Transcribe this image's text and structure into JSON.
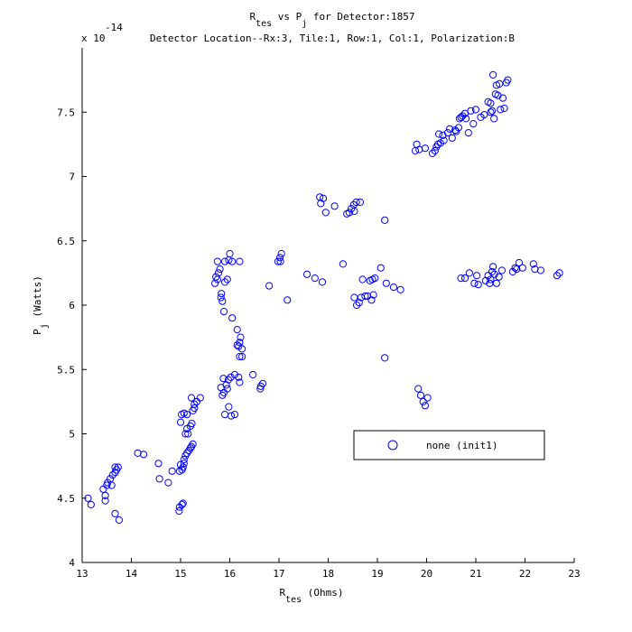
{
  "chart_data": {
    "type": "scatter",
    "title": {
      "line1": {
        "a": "R",
        "a_sub": "tes",
        "b": " vs P",
        "b_sub": "j",
        "c": " for Detector:1857"
      },
      "line2": "Detector Location--Rx:3, Tile:1, Row:1, Col:1, Polarization:B"
    },
    "xlabel": {
      "main": "R",
      "sub": "tes",
      "rest": " (Ohms)"
    },
    "ylabel": {
      "main": "P",
      "sub": "j",
      "rest": " (Watts)"
    },
    "y_exponent": {
      "base": "x 10",
      "exp": "-14"
    },
    "xlim": [
      13,
      23
    ],
    "ylim": [
      4,
      8
    ],
    "xticks": [
      "13",
      "14",
      "15",
      "16",
      "17",
      "18",
      "19",
      "20",
      "21",
      "22",
      "23"
    ],
    "yticks": [
      "4",
      "4.5",
      "5",
      "5.5",
      "6",
      "6.5",
      "7",
      "7.5"
    ],
    "legend": {
      "label": "none (init1)",
      "position": "inside-right"
    },
    "marker_color": "#0000ff",
    "series": [
      {
        "name": "none (init1)",
        "points": [
          [
            13.12,
            4.5
          ],
          [
            13.18,
            4.45
          ],
          [
            13.43,
            4.57
          ],
          [
            13.47,
            4.52
          ],
          [
            13.47,
            4.48
          ],
          [
            13.5,
            4.6
          ],
          [
            13.52,
            4.62
          ],
          [
            13.57,
            4.65
          ],
          [
            13.6,
            4.6
          ],
          [
            13.62,
            4.68
          ],
          [
            13.67,
            4.74
          ],
          [
            13.67,
            4.7
          ],
          [
            13.7,
            4.72
          ],
          [
            13.73,
            4.74
          ],
          [
            13.67,
            4.38
          ],
          [
            13.75,
            4.33
          ],
          [
            14.13,
            4.85
          ],
          [
            14.25,
            4.84
          ],
          [
            14.55,
            4.77
          ],
          [
            14.57,
            4.65
          ],
          [
            14.75,
            4.62
          ],
          [
            14.83,
            4.71
          ],
          [
            14.97,
            4.4
          ],
          [
            14.98,
            4.43
          ],
          [
            15.03,
            4.45
          ],
          [
            15.05,
            4.46
          ],
          [
            14.98,
            4.71
          ],
          [
            15.0,
            4.76
          ],
          [
            15.03,
            4.72
          ],
          [
            15.05,
            4.74
          ],
          [
            15.07,
            4.8
          ],
          [
            15.1,
            4.83
          ],
          [
            15.13,
            4.85
          ],
          [
            15.17,
            4.87
          ],
          [
            15.2,
            4.89
          ],
          [
            15.22,
            4.9
          ],
          [
            15.25,
            4.92
          ],
          [
            15.07,
            4.77
          ],
          [
            15.1,
            5.0
          ],
          [
            15.13,
            5.04
          ],
          [
            15.15,
            5.0
          ],
          [
            15.2,
            5.06
          ],
          [
            15.23,
            5.08
          ],
          [
            15.0,
            5.09
          ],
          [
            15.02,
            5.15
          ],
          [
            15.07,
            5.16
          ],
          [
            15.13,
            5.15
          ],
          [
            15.25,
            5.18
          ],
          [
            15.28,
            5.23
          ],
          [
            15.22,
            5.28
          ],
          [
            15.33,
            5.25
          ],
          [
            15.4,
            5.28
          ],
          [
            15.28,
            5.2
          ],
          [
            15.7,
            6.17
          ],
          [
            15.72,
            6.22
          ],
          [
            15.75,
            6.2
          ],
          [
            15.77,
            6.25
          ],
          [
            15.8,
            6.28
          ],
          [
            15.82,
            6.06
          ],
          [
            15.85,
            6.03
          ],
          [
            15.88,
            5.95
          ],
          [
            15.9,
            6.18
          ],
          [
            15.95,
            6.2
          ],
          [
            15.9,
            6.34
          ],
          [
            15.75,
            6.34
          ],
          [
            15.98,
            6.35
          ],
          [
            16.05,
            6.34
          ],
          [
            16.0,
            6.4
          ],
          [
            16.2,
            6.34
          ],
          [
            15.83,
            6.09
          ],
          [
            16.05,
            5.9
          ],
          [
            16.15,
            5.81
          ],
          [
            16.15,
            5.69
          ],
          [
            16.18,
            5.68
          ],
          [
            16.2,
            5.71
          ],
          [
            16.22,
            5.75
          ],
          [
            16.25,
            5.66
          ],
          [
            16.25,
            5.6
          ],
          [
            16.2,
            5.6
          ],
          [
            15.82,
            5.36
          ],
          [
            15.85,
            5.3
          ],
          [
            15.88,
            5.32
          ],
          [
            15.93,
            5.38
          ],
          [
            15.95,
            5.35
          ],
          [
            15.87,
            5.43
          ],
          [
            15.97,
            5.42
          ],
          [
            16.02,
            5.44
          ],
          [
            16.1,
            5.46
          ],
          [
            16.18,
            5.44
          ],
          [
            16.2,
            5.4
          ],
          [
            15.9,
            5.15
          ],
          [
            15.98,
            5.21
          ],
          [
            16.03,
            5.14
          ],
          [
            16.1,
            5.15
          ],
          [
            16.47,
            5.46
          ],
          [
            16.62,
            5.35
          ],
          [
            16.63,
            5.37
          ],
          [
            16.67,
            5.39
          ],
          [
            16.8,
            6.15
          ],
          [
            16.98,
            6.34
          ],
          [
            17.02,
            6.37
          ],
          [
            17.05,
            6.4
          ],
          [
            17.03,
            6.34
          ],
          [
            17.17,
            6.04
          ],
          [
            17.57,
            6.24
          ],
          [
            17.73,
            6.21
          ],
          [
            17.83,
            6.84
          ],
          [
            17.85,
            6.79
          ],
          [
            17.9,
            6.83
          ],
          [
            17.95,
            6.72
          ],
          [
            17.88,
            6.18
          ],
          [
            18.13,
            6.77
          ],
          [
            18.3,
            6.32
          ],
          [
            18.38,
            6.71
          ],
          [
            18.43,
            6.72
          ],
          [
            18.47,
            6.75
          ],
          [
            18.52,
            6.78
          ],
          [
            18.57,
            6.8
          ],
          [
            18.65,
            6.8
          ],
          [
            18.53,
            6.73
          ],
          [
            18.53,
            6.06
          ],
          [
            18.58,
            6.0
          ],
          [
            18.63,
            6.02
          ],
          [
            18.67,
            6.06
          ],
          [
            18.7,
            6.2
          ],
          [
            18.75,
            6.07
          ],
          [
            18.8,
            6.07
          ],
          [
            18.85,
            6.19
          ],
          [
            18.9,
            6.2
          ],
          [
            18.92,
            6.08
          ],
          [
            18.88,
            6.04
          ],
          [
            18.95,
            6.21
          ],
          [
            19.07,
            6.29
          ],
          [
            19.15,
            6.66
          ],
          [
            19.18,
            6.17
          ],
          [
            19.15,
            5.59
          ],
          [
            19.33,
            6.14
          ],
          [
            19.47,
            6.12
          ],
          [
            19.83,
            5.35
          ],
          [
            19.88,
            5.3
          ],
          [
            19.93,
            5.25
          ],
          [
            19.97,
            5.22
          ],
          [
            20.02,
            5.28
          ],
          [
            19.77,
            7.2
          ],
          [
            19.8,
            7.25
          ],
          [
            19.85,
            7.21
          ],
          [
            19.97,
            7.22
          ],
          [
            20.12,
            7.18
          ],
          [
            20.17,
            7.2
          ],
          [
            20.2,
            7.23
          ],
          [
            20.23,
            7.25
          ],
          [
            20.25,
            7.33
          ],
          [
            20.28,
            7.26
          ],
          [
            20.33,
            7.32
          ],
          [
            20.35,
            7.28
          ],
          [
            20.43,
            7.34
          ],
          [
            20.47,
            7.37
          ],
          [
            20.52,
            7.3
          ],
          [
            20.58,
            7.36
          ],
          [
            20.6,
            7.35
          ],
          [
            20.65,
            7.38
          ],
          [
            20.67,
            7.45
          ],
          [
            20.7,
            7.46
          ],
          [
            20.73,
            7.47
          ],
          [
            20.78,
            7.49
          ],
          [
            20.8,
            7.45
          ],
          [
            20.85,
            7.34
          ],
          [
            20.9,
            7.51
          ],
          [
            20.95,
            7.41
          ],
          [
            21.0,
            7.52
          ],
          [
            21.1,
            7.46
          ],
          [
            21.17,
            7.48
          ],
          [
            21.25,
            7.58
          ],
          [
            21.3,
            7.57
          ],
          [
            21.33,
            7.51
          ],
          [
            21.37,
            7.45
          ],
          [
            21.4,
            7.64
          ],
          [
            21.42,
            7.71
          ],
          [
            21.45,
            7.63
          ],
          [
            21.48,
            7.72
          ],
          [
            21.5,
            7.52
          ],
          [
            21.55,
            7.61
          ],
          [
            21.58,
            7.53
          ],
          [
            21.62,
            7.73
          ],
          [
            21.65,
            7.75
          ],
          [
            21.35,
            7.79
          ],
          [
            21.3,
            7.5
          ],
          [
            20.7,
            6.21
          ],
          [
            20.78,
            6.21
          ],
          [
            20.87,
            6.25
          ],
          [
            20.97,
            6.17
          ],
          [
            21.02,
            6.23
          ],
          [
            21.05,
            6.16
          ],
          [
            21.2,
            6.19
          ],
          [
            21.25,
            6.23
          ],
          [
            21.28,
            6.17
          ],
          [
            21.3,
            6.2
          ],
          [
            21.33,
            6.26
          ],
          [
            21.35,
            6.3
          ],
          [
            21.38,
            6.24
          ],
          [
            21.42,
            6.17
          ],
          [
            21.47,
            6.22
          ],
          [
            21.53,
            6.27
          ],
          [
            21.75,
            6.26
          ],
          [
            21.8,
            6.29
          ],
          [
            21.83,
            6.28
          ],
          [
            21.88,
            6.33
          ],
          [
            21.95,
            6.29
          ],
          [
            22.17,
            6.32
          ],
          [
            22.2,
            6.28
          ],
          [
            22.32,
            6.27
          ],
          [
            22.65,
            6.23
          ],
          [
            22.7,
            6.25
          ]
        ]
      }
    ]
  }
}
